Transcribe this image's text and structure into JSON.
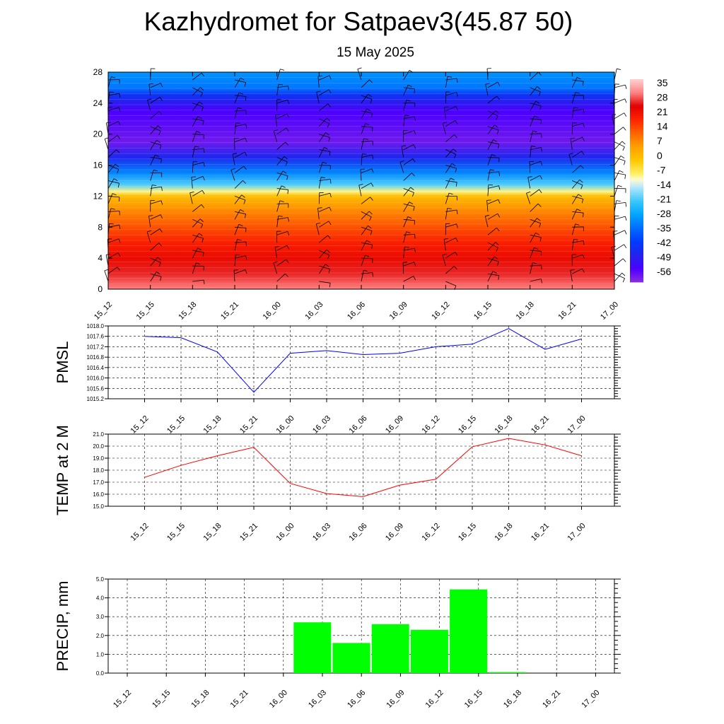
{
  "title": "Kazhydromet for Satpaev3(45.87 50)",
  "subtitle": "15 May 2025",
  "chart_data": [
    {
      "type": "heatmap",
      "name": "upper-air-temperature",
      "x_ticks": [
        "15_12",
        "15_15",
        "15_18",
        "15_21",
        "16_00",
        "16_03",
        "16_06",
        "16_09",
        "16_12",
        "16_15",
        "16_18",
        "16_21",
        "17_00"
      ],
      "y_ticks": [
        "0",
        "4",
        "8",
        "12",
        "16",
        "20",
        "24",
        "28"
      ],
      "ylim": [
        0,
        28
      ],
      "colorbar_labels": [
        "35",
        "28",
        "21",
        "14",
        "7",
        "0",
        "-7",
        "-14",
        "-21",
        "-28",
        "-35",
        "-42",
        "-49",
        "-56"
      ],
      "colorbar_range": [
        -63,
        42
      ],
      "temperature_profile": [
        {
          "level": 0,
          "value": 35
        },
        {
          "level": 2,
          "value": 30
        },
        {
          "level": 4,
          "value": 26
        },
        {
          "level": 6,
          "value": 22
        },
        {
          "level": 8,
          "value": 16
        },
        {
          "level": 10,
          "value": 10
        },
        {
          "level": 12,
          "value": 2
        },
        {
          "level": 12.6,
          "value": -8
        },
        {
          "level": 13.5,
          "value": -20
        },
        {
          "level": 15,
          "value": -32
        },
        {
          "level": 17,
          "value": -48
        },
        {
          "level": 19,
          "value": -60
        },
        {
          "level": 21,
          "value": -58
        },
        {
          "level": 23,
          "value": -56
        },
        {
          "level": 24,
          "value": -51
        },
        {
          "level": 25,
          "value": -45
        },
        {
          "level": 26,
          "value": -34
        },
        {
          "level": 28,
          "value": -30
        }
      ],
      "wind_levels": [
        1,
        2,
        3,
        4,
        5,
        6,
        7,
        8,
        9,
        10,
        11,
        12,
        13,
        14,
        15,
        16,
        17,
        18,
        19,
        20,
        21,
        22,
        23,
        24,
        25,
        26,
        27
      ],
      "grid": false
    },
    {
      "type": "line",
      "name": "pmsl",
      "ylabel": "PMSL",
      "categories": [
        "15_12",
        "15_15",
        "15_18",
        "15_21",
        "16_00",
        "16_03",
        "16_06",
        "16_09",
        "16_12",
        "16_15",
        "16_18",
        "16_21",
        "17_00"
      ],
      "series": [
        {
          "values": [
            1017.6,
            1017.55,
            1017.0,
            1015.45,
            1016.95,
            1017.05,
            1016.9,
            1016.95,
            1017.2,
            1017.3,
            1017.9,
            1017.1,
            1017.5
          ],
          "color": "#0000ff"
        }
      ],
      "ylim": [
        1015.2,
        1018.0
      ],
      "y_ticks": [
        "1015.2",
        "1015.6",
        "1016.0",
        "1016.4",
        "1016.8",
        "1017.2",
        "1017.6",
        "1018.0"
      ],
      "grid": true
    },
    {
      "type": "line",
      "name": "temp-2m",
      "ylabel": "TEMP at 2 M",
      "categories": [
        "15_12",
        "15_15",
        "15_18",
        "15_21",
        "16_00",
        "16_03",
        "16_06",
        "16_09",
        "16_12",
        "16_15",
        "16_18",
        "16_21",
        "17_00"
      ],
      "series": [
        {
          "values": [
            17.4,
            18.4,
            19.2,
            19.9,
            16.9,
            16.05,
            15.8,
            16.75,
            17.25,
            19.95,
            20.65,
            20.1,
            19.2
          ],
          "color": "#ff0000"
        }
      ],
      "ylim": [
        15.0,
        21.0
      ],
      "y_ticks": [
        "15.0",
        "16.0",
        "17.0",
        "18.0",
        "19.0",
        "20.0",
        "21.0"
      ],
      "grid": true
    },
    {
      "type": "bar",
      "name": "precipitation",
      "ylabel": "PRECIP, mm",
      "categories": [
        "15_12",
        "15_15",
        "15_18",
        "15_21",
        "16_00",
        "16_03",
        "16_06",
        "16_09",
        "16_12",
        "16_15",
        "16_18",
        "16_21",
        "17_00"
      ],
      "series": [
        {
          "values": [
            0,
            0,
            0,
            0,
            2.7,
            1.6,
            2.6,
            2.3,
            4.45,
            0.05,
            0,
            0,
            0
          ],
          "color": "#00ff00"
        }
      ],
      "ylim": [
        0,
        5.0
      ],
      "y_ticks": [
        "0.0",
        "1.0",
        "2.0",
        "3.0",
        "4.0",
        "5.0"
      ],
      "grid": true
    }
  ]
}
